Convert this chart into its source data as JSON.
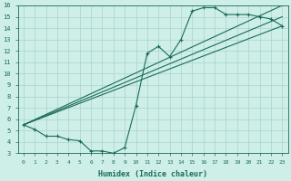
{
  "xlabel": "Humidex (Indice chaleur)",
  "xlim": [
    -0.5,
    23.5
  ],
  "ylim": [
    3,
    16
  ],
  "xticks": [
    0,
    1,
    2,
    3,
    4,
    5,
    6,
    7,
    8,
    9,
    10,
    11,
    12,
    13,
    14,
    15,
    16,
    17,
    18,
    19,
    20,
    21,
    22,
    23
  ],
  "yticks": [
    3,
    4,
    5,
    6,
    7,
    8,
    9,
    10,
    11,
    12,
    13,
    14,
    15,
    16
  ],
  "bg_color": "#ceeee8",
  "grid_color": "#aad4cc",
  "line_color": "#1a6b5a",
  "wavy_x": [
    0,
    1,
    2,
    3,
    4,
    5,
    6,
    7,
    8,
    9,
    10,
    11,
    12,
    13,
    14,
    15,
    16,
    17,
    18,
    19,
    20,
    21,
    22,
    23
  ],
  "wavy_y": [
    5.5,
    5.1,
    4.5,
    4.5,
    4.2,
    4.1,
    3.2,
    3.2,
    3.0,
    3.5,
    7.2,
    11.8,
    12.4,
    11.5,
    13.0,
    15.5,
    15.8,
    15.8,
    15.2,
    15.2,
    15.2,
    15.0,
    14.8,
    14.2
  ],
  "line1_x": [
    0,
    23
  ],
  "line1_y": [
    5.5,
    14.2
  ],
  "line2_x": [
    0,
    23
  ],
  "line2_y": [
    5.5,
    15.0
  ],
  "line3_x": [
    0,
    23
  ],
  "line3_y": [
    5.5,
    16.0
  ]
}
